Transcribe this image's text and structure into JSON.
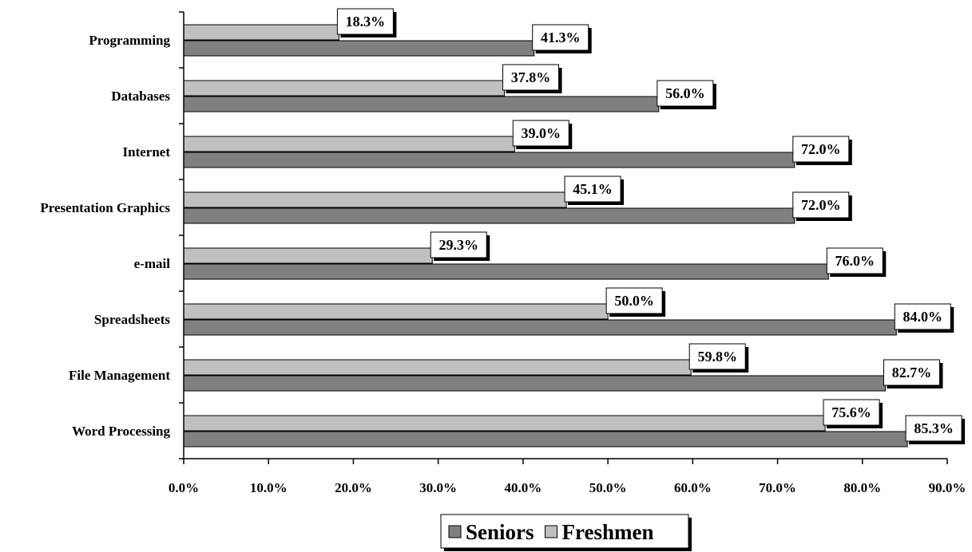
{
  "chart_data": {
    "type": "bar",
    "orientation": "horizontal",
    "categories": [
      "Programming",
      "Databases",
      "Internet",
      "Presentation Graphics",
      "e-mail",
      "Spreadsheets",
      "File Management",
      "Word Processing"
    ],
    "series": [
      {
        "name": "Seniors",
        "color": "#808080",
        "values": [
          41.3,
          56.0,
          72.0,
          72.0,
          76.0,
          84.0,
          82.7,
          85.3
        ]
      },
      {
        "name": "Freshmen",
        "color": "#c0c0c0",
        "values": [
          18.3,
          37.8,
          39.0,
          45.1,
          29.3,
          50.0,
          59.8,
          75.6
        ]
      }
    ],
    "data_labels": {
      "Seniors": [
        "41.3%",
        "56.0%",
        "72.0%",
        "72.0%",
        "76.0%",
        "84.0%",
        "82.7%",
        "85.3%"
      ],
      "Freshmen": [
        "18.3%",
        "37.8%",
        "39.0%",
        "45.1%",
        "29.3%",
        "50.0%",
        "59.8%",
        "75.6%"
      ]
    },
    "x_ticks": [
      "0.0%",
      "10.0%",
      "20.0%",
      "30.0%",
      "40.0%",
      "50.0%",
      "60.0%",
      "70.0%",
      "80.0%",
      "90.0%"
    ],
    "xlim": [
      0,
      90
    ],
    "grid": false,
    "legend": {
      "position": "bottom",
      "entries": [
        "Seniors",
        "Freshmen"
      ]
    }
  }
}
